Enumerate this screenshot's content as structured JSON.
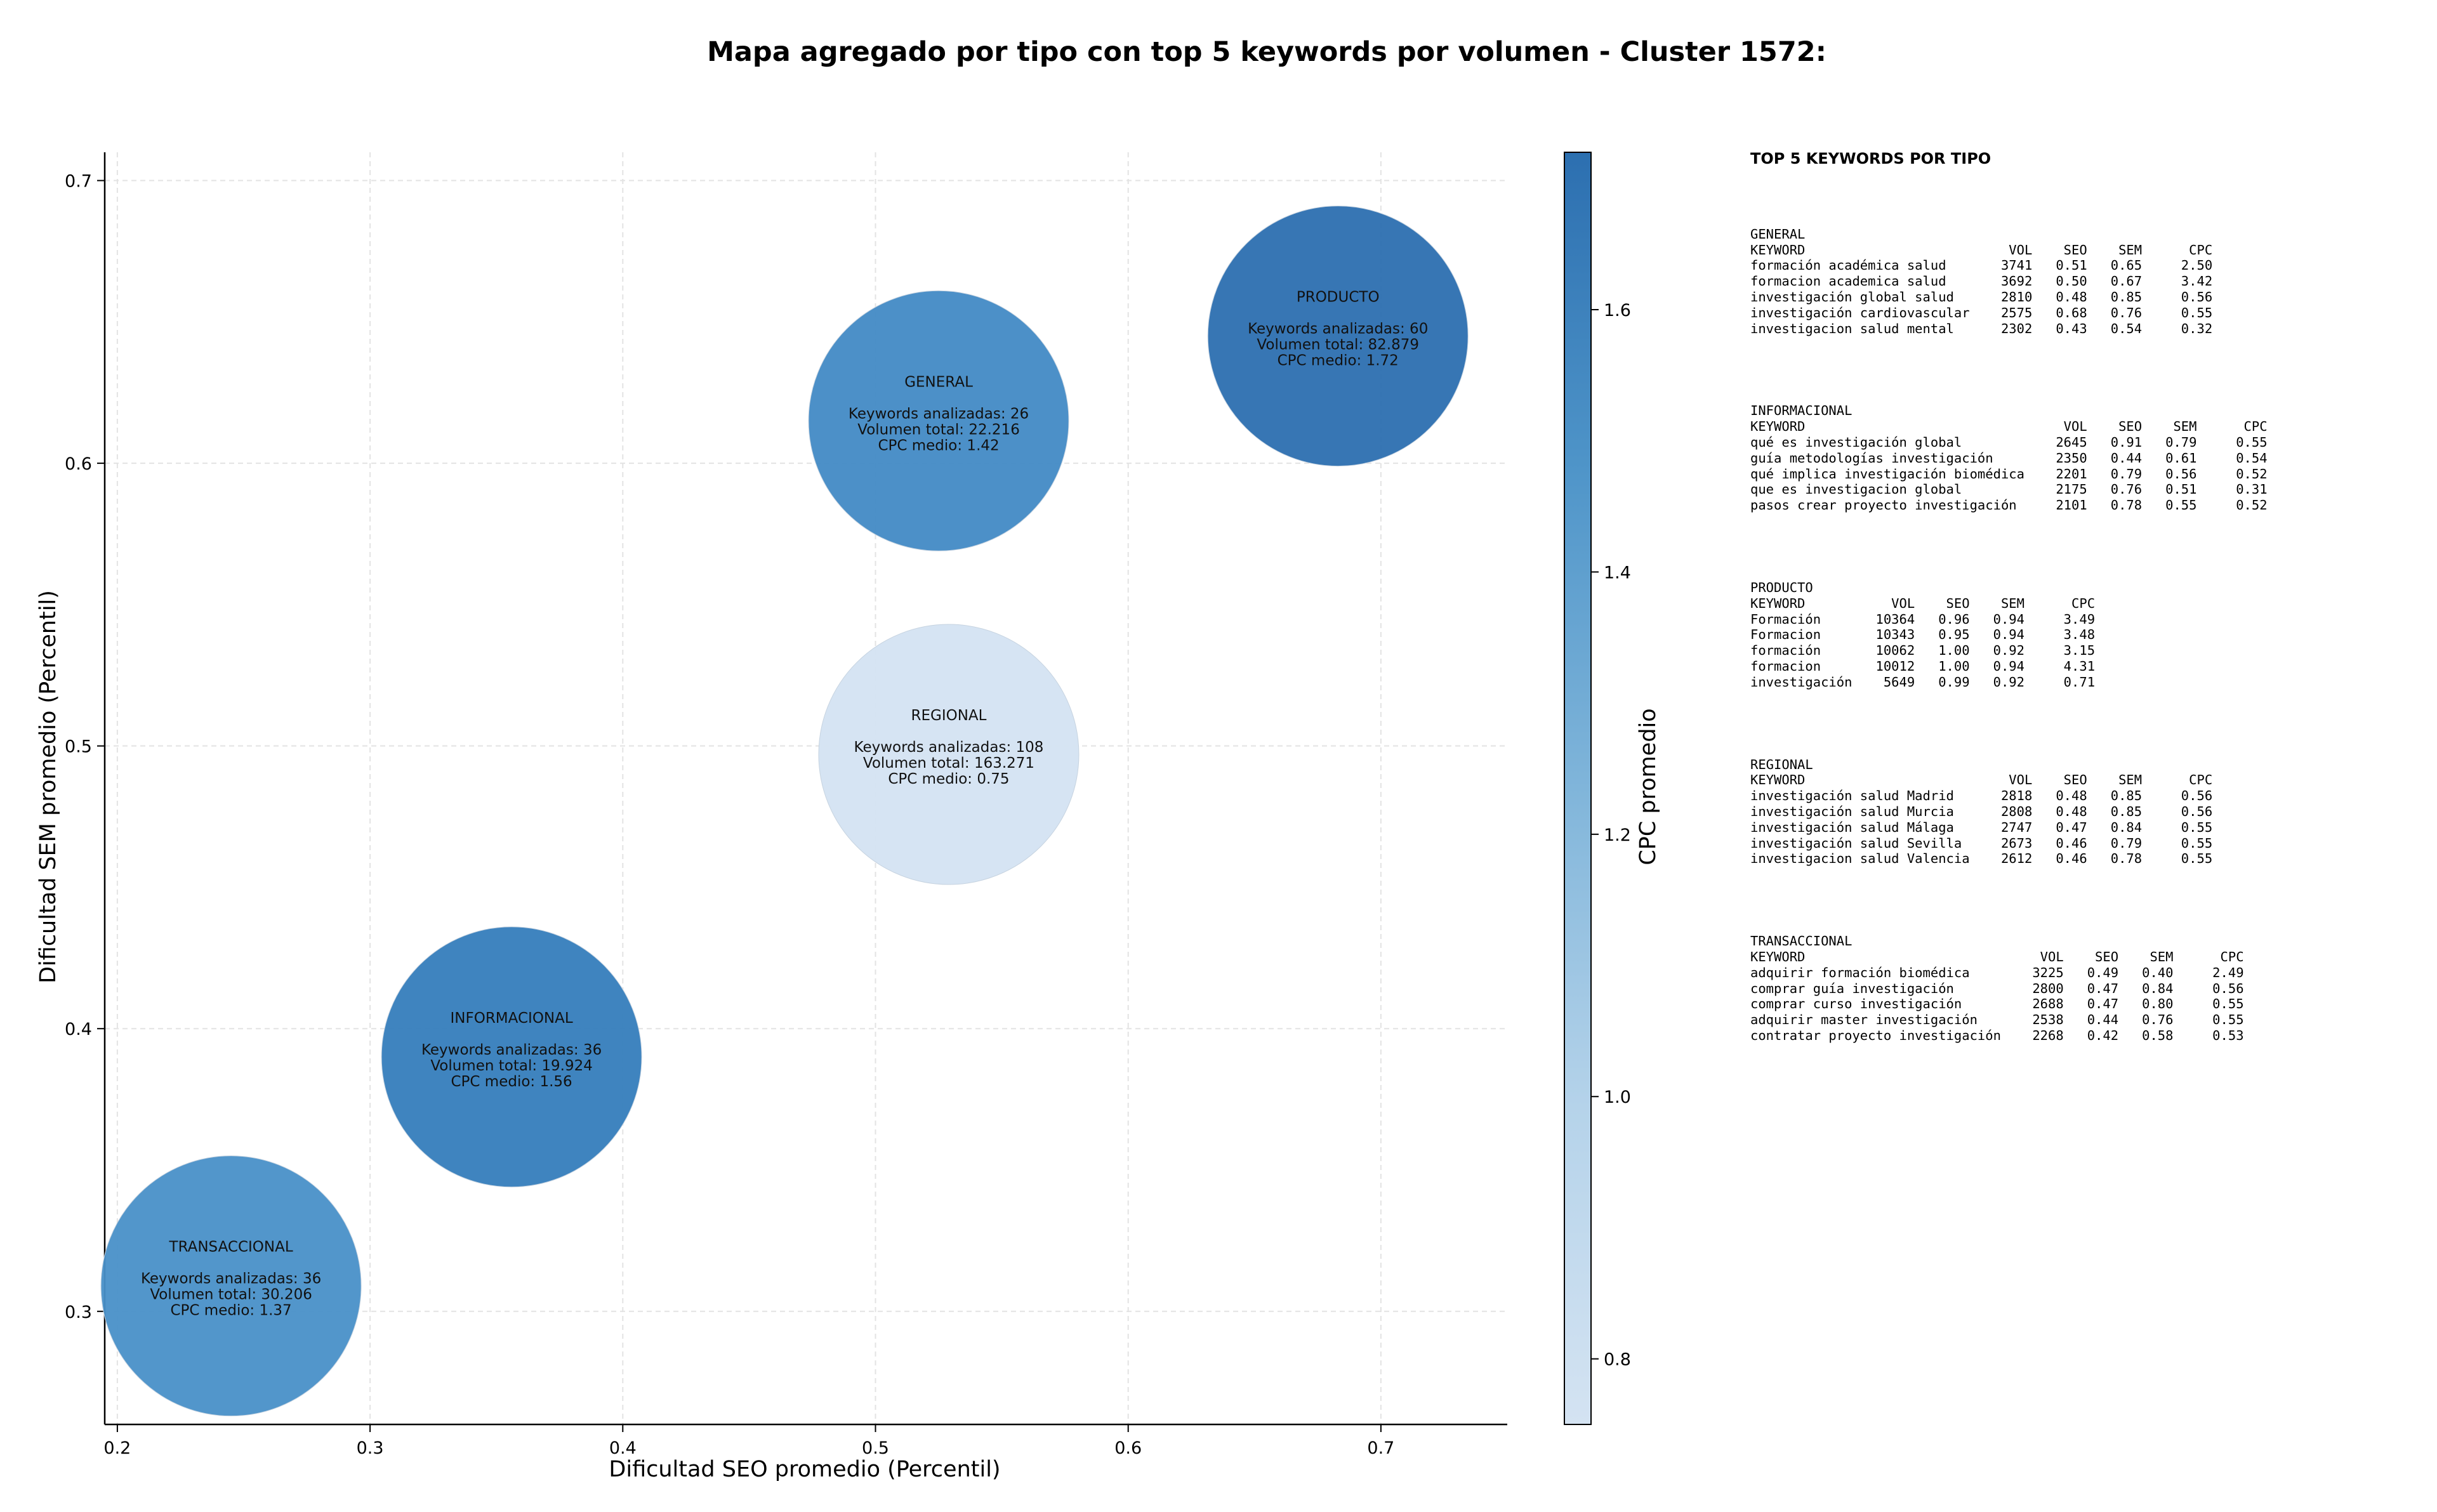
{
  "chart_data": {
    "type": "scatter",
    "title": "Mapa agregado por tipo con top 5 keywords por volumen - Cluster 1572:",
    "xlabel": "Dificultad SEO promedio (Percentil)",
    "ylabel": "Dificultad SEM promedio (Percentil)",
    "xlim": [
      0.195,
      0.75
    ],
    "ylim": [
      0.26,
      0.71
    ],
    "xticks": [
      "0.2",
      "0.3",
      "0.4",
      "0.5",
      "0.6",
      "0.7"
    ],
    "yticks": [
      "0.3",
      "0.4",
      "0.5",
      "0.6",
      "0.7"
    ],
    "grid": true,
    "colorbar": {
      "label": "CPC promedio",
      "range": [
        0.75,
        1.72
      ],
      "ticks": [
        "0.8",
        "1.0",
        "1.2",
        "1.4",
        "1.6"
      ],
      "colors": [
        "#d4e3f2",
        "#9ac6e0",
        "#5b9fcf",
        "#3a84c2",
        "#2c6fb0"
      ]
    },
    "points": [
      {
        "label": "PRODUCTO",
        "x": 0.683,
        "y": 0.645,
        "keywords_line": "Keywords analizadas: 60",
        "volume_line": "Volumen total: 82.879",
        "cpc_line": "CPC medio: 1.72",
        "cpc": 1.72
      },
      {
        "label": "GENERAL",
        "x": 0.525,
        "y": 0.615,
        "keywords_line": "Keywords analizadas: 26",
        "volume_line": "Volumen total: 22.216",
        "cpc_line": "CPC medio: 1.42",
        "cpc": 1.42
      },
      {
        "label": "REGIONAL",
        "x": 0.529,
        "y": 0.497,
        "keywords_line": "Keywords analizadas: 108",
        "volume_line": "Volumen total: 163.271",
        "cpc_line": "CPC medio: 0.75",
        "cpc": 0.75
      },
      {
        "label": "INFORMACIONAL",
        "x": 0.356,
        "y": 0.39,
        "keywords_line": "Keywords analizadas: 36",
        "volume_line": "Volumen total: 19.924",
        "cpc_line": "CPC medio: 1.56",
        "cpc": 1.56
      },
      {
        "label": "TRANSACCIONAL",
        "x": 0.245,
        "y": 0.309,
        "keywords_line": "Keywords analizadas: 36",
        "volume_line": "Volumen total: 30.206",
        "cpc_line": "CPC medio: 1.37",
        "cpc": 1.37
      }
    ]
  },
  "panel": {
    "title": "TOP 5 KEYWORDS POR TIPO",
    "sections": [
      {
        "name": "GENERAL",
        "header": "KEYWORD                          VOL    SEO    SEM      CPC",
        "rows": [
          "formación académica salud       3741   0.51   0.65     2.50",
          "formacion academica salud       3692   0.50   0.67     3.42",
          "investigación global salud      2810   0.48   0.85     0.56",
          "investigación cardiovascular    2575   0.68   0.76     0.55",
          "investigacion salud mental      2302   0.43   0.54     0.32"
        ]
      },
      {
        "name": "INFORMACIONAL",
        "header": "KEYWORD                                 VOL    SEO    SEM      CPC",
        "rows": [
          "qué es investigación global            2645   0.91   0.79     0.55",
          "guía metodologías investigación        2350   0.44   0.61     0.54",
          "qué implica investigación biomédica    2201   0.79   0.56     0.52",
          "que es investigacion global            2175   0.76   0.51     0.31",
          "pasos crear proyecto investigación     2101   0.78   0.55     0.52"
        ]
      },
      {
        "name": "PRODUCTO",
        "header": "KEYWORD           VOL    SEO    SEM      CPC",
        "rows": [
          "Formación       10364   0.96   0.94     3.49",
          "Formacion       10343   0.95   0.94     3.48",
          "formación       10062   1.00   0.92     3.15",
          "formacion       10012   1.00   0.94     4.31",
          "investigación    5649   0.99   0.92     0.71"
        ]
      },
      {
        "name": "REGIONAL",
        "header": "KEYWORD                          VOL    SEO    SEM      CPC",
        "rows": [
          "investigación salud Madrid      2818   0.48   0.85     0.56",
          "investigación salud Murcia      2808   0.48   0.85     0.56",
          "investigación salud Málaga      2747   0.47   0.84     0.55",
          "investigación salud Sevilla     2673   0.46   0.79     0.55",
          "investigacion salud Valencia    2612   0.46   0.78     0.55"
        ]
      },
      {
        "name": "TRANSACCIONAL",
        "header": "KEYWORD                              VOL    SEO    SEM      CPC",
        "rows": [
          "adquirir formación biomédica        3225   0.49   0.40     2.49",
          "comprar guía investigación          2800   0.47   0.84     0.56",
          "comprar curso investigación         2688   0.47   0.80     0.55",
          "adquirir master investigación       2538   0.44   0.76     0.55",
          "contratar proyecto investigación    2268   0.42   0.58     0.53"
        ]
      }
    ]
  }
}
